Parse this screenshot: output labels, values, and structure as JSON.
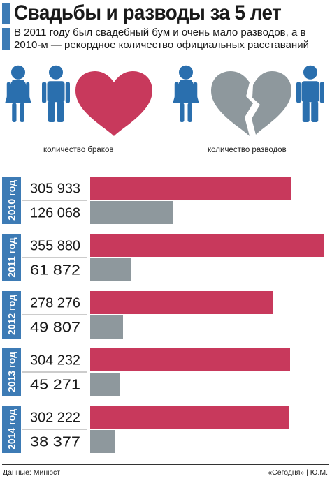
{
  "header": {
    "title": "Свадьбы и разводы за 5 лет",
    "subtitle": "В 2011 году был свадебный бум и очень мало разводов, а в 2010-м — рекордное количество официальных расставаний"
  },
  "legend": {
    "marriages_label": "количество браков",
    "divorces_label": "количество разводов"
  },
  "colors": {
    "marriages": "#c8395c",
    "divorces": "#8e989d",
    "people": "#2a6fae",
    "accent": "#3d7bb5"
  },
  "icons": [
    "woman-icon",
    "man-icon",
    "heart-icon",
    "broken-heart-icon"
  ],
  "chart_data": {
    "type": "bar",
    "orientation": "horizontal",
    "categories": [
      "2010 год",
      "2011 год",
      "2012 год",
      "2013 год",
      "2014 год"
    ],
    "series": [
      {
        "name": "количество браков",
        "values": [
          305933,
          355880,
          278276,
          304232,
          302222
        ],
        "labels": [
          "305 933",
          "355 880",
          "278 276",
          "304 232",
          "302 222"
        ]
      },
      {
        "name": "количество разводов",
        "values": [
          126068,
          61872,
          49807,
          45271,
          38377
        ],
        "labels": [
          "126 068",
          "61 872",
          "49 807",
          "45 271",
          "38 377"
        ]
      }
    ]
  },
  "footer": {
    "source": "Данные: Минюст",
    "credit": "«Сегодня» | Ю.М."
  }
}
